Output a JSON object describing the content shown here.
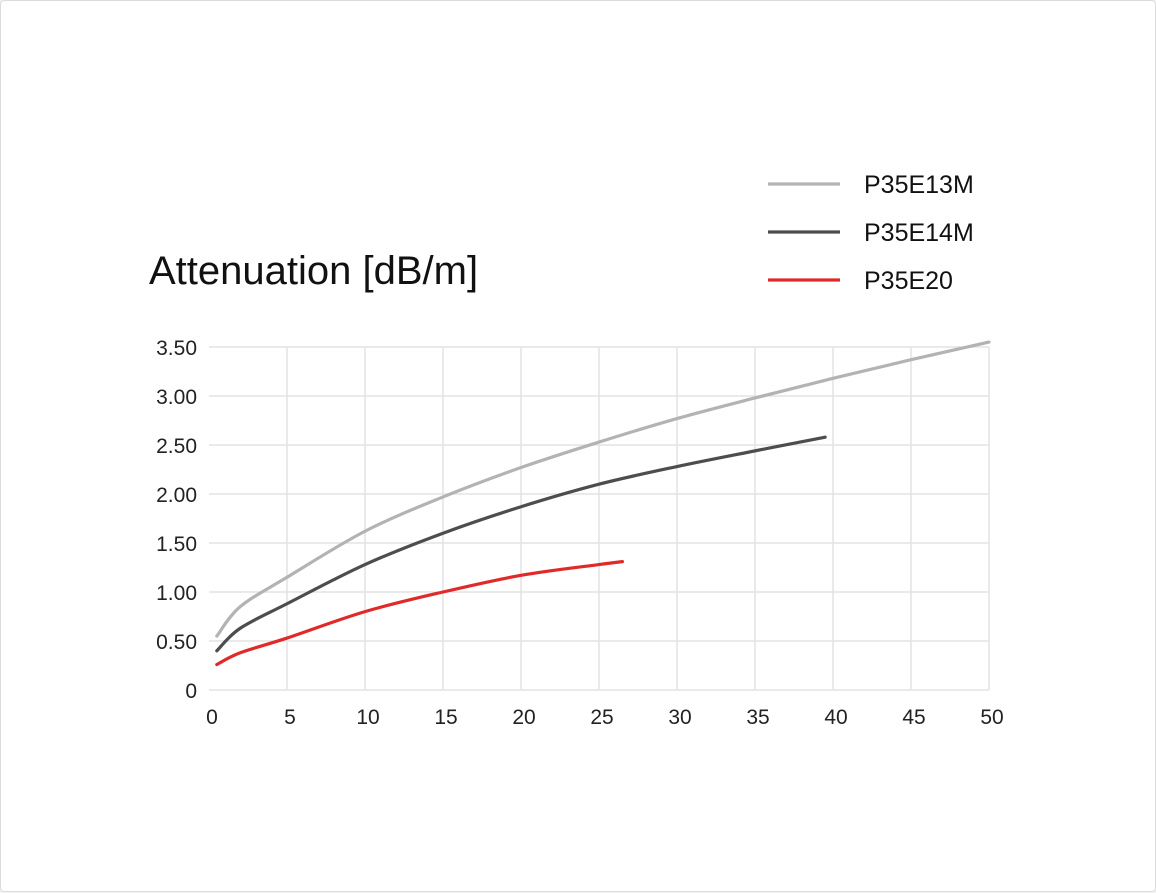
{
  "chart_data": {
    "type": "line",
    "title": "Attenuation [dB/m]",
    "xlabel": "",
    "ylabel": "",
    "xlim": [
      0,
      50
    ],
    "ylim": [
      0,
      3.5
    ],
    "x_ticks": [
      "0",
      "5",
      "10",
      "15",
      "20",
      "25",
      "30",
      "35",
      "40",
      "45",
      "50"
    ],
    "y_ticks": [
      "0",
      "0.50",
      "1.00",
      "1.50",
      "2.00",
      "2.50",
      "3.00",
      "3.50"
    ],
    "grid": true,
    "legend_position": "top-right",
    "series": [
      {
        "name": "P35E13M",
        "color": "#b3b3b3",
        "x": [
          0.5,
          2,
          5,
          10,
          15,
          20,
          25,
          30,
          35,
          40,
          45,
          50
        ],
        "y": [
          0.55,
          0.85,
          1.15,
          1.62,
          1.97,
          2.27,
          2.53,
          2.77,
          2.98,
          3.18,
          3.37,
          3.55
        ]
      },
      {
        "name": "P35E14M",
        "color": "#4d4d4d",
        "x": [
          0.5,
          2,
          5,
          10,
          15,
          20,
          25,
          30,
          35,
          39.5
        ],
        "y": [
          0.4,
          0.63,
          0.88,
          1.28,
          1.6,
          1.87,
          2.1,
          2.28,
          2.44,
          2.58
        ]
      },
      {
        "name": "P35E20",
        "color": "#e02a2a",
        "x": [
          0.5,
          2,
          5,
          10,
          15,
          20,
          25,
          26.5
        ],
        "y": [
          0.26,
          0.38,
          0.53,
          0.8,
          1.0,
          1.17,
          1.28,
          1.31
        ]
      }
    ]
  }
}
